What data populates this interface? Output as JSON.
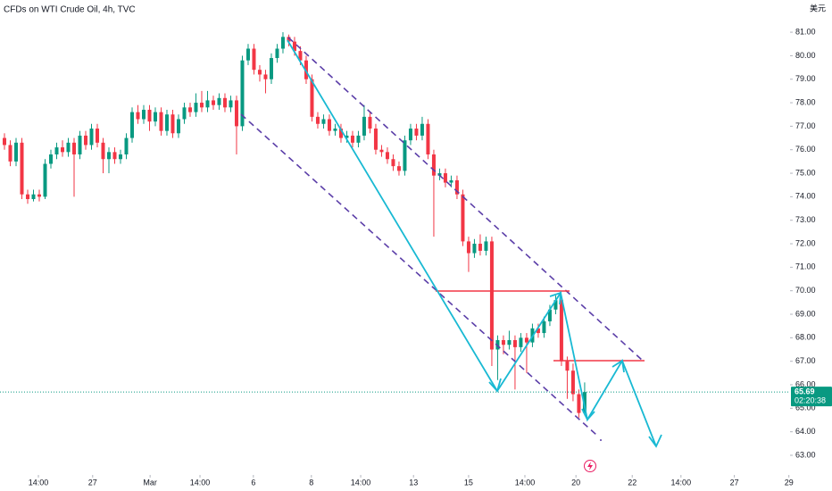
{
  "chart_data": {
    "type": "candlestick",
    "title": "CFDs on WTI Crude Oil, 4h, TVC",
    "currency": "美元",
    "up_color": "#089981",
    "down_color": "#f23645",
    "last_price": 65.69,
    "countdown": "02:20:38",
    "x": [
      0,
      1,
      2,
      3,
      4,
      5,
      6,
      7,
      8,
      9,
      10,
      11,
      12,
      13,
      14,
      15,
      16,
      17,
      18,
      19,
      20,
      21,
      22,
      23,
      24,
      25,
      26,
      27,
      28,
      29,
      30,
      31,
      32,
      33,
      34,
      35,
      36,
      37,
      38,
      39,
      40,
      41,
      42,
      43,
      44,
      45,
      46,
      47,
      48,
      49,
      50,
      51,
      52,
      53,
      54,
      55,
      56,
      57,
      58,
      59,
      60,
      61,
      62,
      63,
      64,
      65,
      66,
      67,
      68,
      69,
      70,
      71,
      72,
      73,
      74,
      75,
      76,
      77,
      78,
      79,
      80,
      81,
      82,
      83,
      84,
      85,
      86,
      87,
      88,
      89,
      90,
      91,
      92,
      93,
      94,
      95,
      96,
      97,
      98,
      99,
      100
    ],
    "open": [
      76.5,
      76.2,
      75.5,
      76.3,
      74.1,
      73.9,
      74.1,
      74.0,
      75.4,
      75.8,
      76.1,
      75.9,
      76.3,
      75.8,
      76.6,
      76.2,
      76.9,
      76.3,
      75.6,
      75.9,
      75.6,
      75.8,
      76.5,
      77.6,
      77.3,
      77.7,
      77.2,
      77.6,
      76.8,
      77.5,
      76.7,
      77.3,
      77.8,
      77.6,
      78.0,
      77.8,
      78.1,
      77.9,
      78.2,
      77.8,
      78.1,
      77.0,
      79.8,
      80.3,
      79.4,
      79.2,
      79.0,
      79.9,
      80.3,
      80.8,
      80.6,
      80.2,
      79.8,
      79.0,
      77.4,
      77.1,
      77.3,
      76.8,
      76.9,
      76.5,
      76.6,
      76.3,
      76.6,
      77.4,
      76.9,
      76.0,
      75.9,
      75.6,
      75.3,
      75.1,
      76.4,
      76.9,
      76.6,
      77.1,
      75.8,
      74.9,
      75.0,
      74.6,
      74.7,
      74.1,
      72.1,
      71.6,
      72.0,
      71.7,
      72.1,
      67.5,
      67.9,
      67.7,
      67.9,
      67.6,
      68.0,
      67.8,
      68.4,
      68.2,
      68.7,
      69.2,
      69.6,
      67.0,
      66.6,
      65.6,
      64.8
    ],
    "high": [
      76.7,
      76.4,
      76.5,
      76.5,
      74.3,
      74.3,
      74.3,
      75.6,
      76.0,
      76.3,
      76.4,
      76.5,
      76.5,
      76.8,
      76.8,
      77.1,
      77.1,
      76.5,
      76.1,
      76.1,
      76.0,
      76.7,
      77.8,
      77.9,
      77.9,
      77.9,
      77.8,
      77.8,
      77.7,
      77.7,
      77.5,
      78.0,
      78.0,
      78.4,
      78.5,
      78.5,
      78.3,
      78.4,
      78.4,
      78.3,
      78.3,
      80.0,
      80.5,
      80.5,
      79.6,
      79.4,
      80.1,
      80.5,
      81.0,
      80.9,
      80.8,
      80.4,
      80.0,
      79.2,
      77.6,
      77.5,
      77.5,
      77.1,
      77.1,
      76.8,
      76.8,
      76.8,
      77.9,
      77.6,
      77.1,
      76.2,
      76.1,
      75.8,
      75.5,
      76.6,
      77.1,
      77.1,
      77.4,
      77.3,
      76.0,
      75.2,
      75.2,
      74.9,
      74.9,
      74.3,
      72.3,
      72.2,
      72.4,
      72.3,
      72.3,
      68.1,
      68.1,
      68.3,
      68.1,
      68.2,
      68.2,
      68.6,
      68.6,
      68.9,
      69.4,
      69.8,
      69.8,
      67.2,
      66.9,
      65.8,
      66.1
    ],
    "low": [
      76.0,
      75.3,
      75.3,
      73.9,
      73.7,
      73.8,
      73.8,
      73.9,
      75.2,
      75.6,
      75.7,
      75.7,
      74.0,
      75.6,
      76.0,
      76.0,
      76.1,
      75.0,
      75.0,
      75.4,
      75.4,
      75.6,
      76.3,
      77.1,
      77.1,
      76.8,
      77.0,
      76.6,
      76.6,
      76.5,
      76.5,
      77.1,
      77.4,
      77.4,
      77.6,
      77.6,
      77.7,
      77.7,
      77.6,
      77.6,
      75.8,
      76.8,
      79.6,
      79.2,
      78.9,
      78.4,
      78.8,
      79.7,
      80.1,
      80.4,
      80.0,
      79.6,
      78.8,
      77.2,
      76.9,
      76.9,
      76.6,
      76.6,
      76.3,
      76.3,
      76.1,
      76.1,
      76.4,
      76.7,
      75.8,
      75.7,
      75.4,
      75.1,
      74.9,
      74.9,
      76.2,
      76.4,
      76.4,
      75.6,
      72.3,
      74.7,
      74.4,
      74.4,
      73.9,
      71.9,
      70.8,
      71.4,
      71.5,
      71.5,
      66.8,
      66.2,
      67.3,
      67.5,
      65.8,
      67.4,
      66.5,
      67.6,
      68.0,
      68.0,
      68.5,
      69.0,
      66.8,
      65.4,
      65.3,
      64.6,
      64.7
    ],
    "close": [
      76.2,
      75.5,
      76.3,
      74.1,
      73.9,
      74.1,
      74.0,
      75.4,
      75.8,
      76.1,
      75.9,
      76.3,
      75.8,
      76.6,
      76.2,
      76.9,
      76.3,
      75.6,
      75.9,
      75.6,
      75.8,
      76.5,
      77.6,
      77.3,
      77.7,
      77.2,
      77.6,
      76.8,
      77.5,
      76.7,
      77.3,
      77.8,
      77.6,
      78.0,
      77.8,
      78.1,
      77.9,
      78.2,
      77.8,
      78.1,
      77.0,
      79.8,
      80.3,
      79.4,
      79.2,
      79.0,
      79.9,
      80.3,
      80.8,
      80.6,
      80.2,
      79.8,
      79.0,
      77.4,
      77.1,
      77.3,
      76.8,
      76.9,
      76.5,
      76.6,
      76.3,
      76.6,
      77.4,
      76.9,
      76.0,
      75.9,
      75.6,
      75.3,
      75.1,
      76.4,
      76.9,
      76.6,
      77.1,
      75.8,
      74.9,
      75.0,
      74.6,
      74.7,
      74.1,
      72.1,
      71.6,
      72.0,
      71.7,
      72.1,
      67.5,
      67.9,
      67.7,
      67.9,
      67.6,
      68.0,
      67.8,
      68.4,
      68.2,
      68.7,
      69.2,
      69.6,
      67.0,
      66.6,
      65.6,
      64.8,
      65.69
    ],
    "xlim": [
      -0.77,
      135.4
    ],
    "xticks": [
      {
        "value": 5.85,
        "label": "14:00"
      },
      {
        "value": 15.2,
        "label": "27"
      },
      {
        "value": 25.1,
        "label": "Mar"
      },
      {
        "value": 33.7,
        "label": "14:00"
      },
      {
        "value": 42.9,
        "label": "6"
      },
      {
        "value": 52.9,
        "label": "8"
      },
      {
        "value": 61.4,
        "label": "14:00"
      },
      {
        "value": 70.5,
        "label": "13"
      },
      {
        "value": 80,
        "label": "15"
      },
      {
        "value": 89.7,
        "label": "14:00"
      },
      {
        "value": 98.5,
        "label": "20"
      },
      {
        "value": 108.2,
        "label": "22"
      },
      {
        "value": 116.6,
        "label": "14:00"
      },
      {
        "value": 125.8,
        "label": "27"
      },
      {
        "value": 135.2,
        "label": "29"
      }
    ],
    "ylim": [
      62.24,
      82.37
    ],
    "yticks": [
      {
        "value": 63,
        "label": "63.00"
      },
      {
        "value": 64,
        "label": "64.00"
      },
      {
        "value": 65,
        "label": "65.00"
      },
      {
        "value": 66,
        "label": "66.00"
      },
      {
        "value": 67,
        "label": "67.00"
      },
      {
        "value": 68,
        "label": "68.00"
      },
      {
        "value": 69,
        "label": "69.00"
      },
      {
        "value": 70,
        "label": "70.00"
      },
      {
        "value": 71,
        "label": "71.00"
      },
      {
        "value": 72,
        "label": "72.00"
      },
      {
        "value": 73,
        "label": "73.00"
      },
      {
        "value": 74,
        "label": "74.00"
      },
      {
        "value": 75,
        "label": "75.00"
      },
      {
        "value": 76,
        "label": "76.00"
      },
      {
        "value": 77,
        "label": "77.00"
      },
      {
        "value": 78,
        "label": "78.00"
      },
      {
        "value": 79,
        "label": "79.00"
      },
      {
        "value": 80,
        "label": "80.00"
      },
      {
        "value": 81,
        "label": "81.00"
      }
    ]
  }
}
